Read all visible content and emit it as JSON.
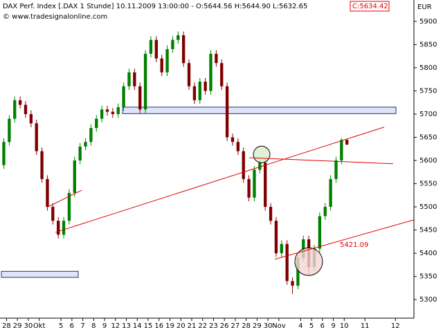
{
  "chart_data": {
    "type": "candlestick",
    "title": "DAX Perf. Index [.DAX  1 Stunde] 10.11.2009 13:00:00 - O:5644.56 H:5644.90 L:5632.65",
    "last_close_label": "C:5634.42",
    "copyright": "© www.tradesignalonline.com",
    "y_unit": "EUR",
    "up_color": "#008000",
    "down_color": "#800000",
    "line_color": "#e00000",
    "xlim": [
      -0.6,
      37.4
    ],
    "ylim": [
      5260,
      5946
    ],
    "yticks": [
      5300,
      5350,
      5400,
      5450,
      5500,
      5550,
      5600,
      5650,
      5700,
      5750,
      5800,
      5850,
      5900
    ],
    "xticks": [
      {
        "value": 0,
        "label": "28"
      },
      {
        "value": 1,
        "label": "29"
      },
      {
        "value": 2,
        "label": "30"
      },
      {
        "value": 3,
        "label": "Okt"
      },
      {
        "value": 5,
        "label": "5"
      },
      {
        "value": 6,
        "label": "6"
      },
      {
        "value": 7,
        "label": "7"
      },
      {
        "value": 8,
        "label": "8"
      },
      {
        "value": 9,
        "label": "9"
      },
      {
        "value": 10,
        "label": "12"
      },
      {
        "value": 11,
        "label": "13"
      },
      {
        "value": 12,
        "label": "14"
      },
      {
        "value": 13,
        "label": "15"
      },
      {
        "value": 14,
        "label": "16"
      },
      {
        "value": 15,
        "label": "19"
      },
      {
        "value": 16,
        "label": "20"
      },
      {
        "value": 17,
        "label": "21"
      },
      {
        "value": 18,
        "label": "22"
      },
      {
        "value": 19,
        "label": "23"
      },
      {
        "value": 20,
        "label": "26"
      },
      {
        "value": 21,
        "label": "27"
      },
      {
        "value": 22,
        "label": "28"
      },
      {
        "value": 23,
        "label": "29"
      },
      {
        "value": 24,
        "label": "30"
      },
      {
        "value": 25,
        "label": "Nov"
      },
      {
        "value": 27,
        "label": "4"
      },
      {
        "value": 28,
        "label": "5"
      },
      {
        "value": 29,
        "label": "6"
      },
      {
        "value": 30,
        "label": "9"
      },
      {
        "value": 31,
        "label": "10"
      },
      {
        "value": 32.9,
        "label": "11"
      },
      {
        "value": 35.7,
        "label": "12"
      }
    ],
    "candles": [
      {
        "x": -0.25,
        "o": 5590,
        "h": 5648,
        "l": 5582,
        "c": 5640
      },
      {
        "x": 0.25,
        "o": 5640,
        "h": 5698,
        "l": 5632,
        "c": 5690
      },
      {
        "x": 0.75,
        "o": 5690,
        "h": 5738,
        "l": 5682,
        "c": 5730
      },
      {
        "x": 1.25,
        "o": 5730,
        "h": 5738,
        "l": 5712,
        "c": 5720
      },
      {
        "x": 1.75,
        "o": 5720,
        "h": 5728,
        "l": 5692,
        "c": 5700
      },
      {
        "x": 2.25,
        "o": 5700,
        "h": 5708,
        "l": 5672,
        "c": 5680
      },
      {
        "x": 2.75,
        "o": 5680,
        "h": 5688,
        "l": 5612,
        "c": 5620
      },
      {
        "x": 3.25,
        "o": 5620,
        "h": 5628,
        "l": 5552,
        "c": 5560
      },
      {
        "x": 3.75,
        "o": 5560,
        "h": 5568,
        "l": 5492,
        "c": 5500
      },
      {
        "x": 4.25,
        "o": 5500,
        "h": 5508,
        "l": 5462,
        "c": 5470
      },
      {
        "x": 4.75,
        "o": 5470,
        "h": 5478,
        "l": 5432,
        "c": 5440
      },
      {
        "x": 5.25,
        "o": 5440,
        "h": 5478,
        "l": 5432,
        "c": 5470
      },
      {
        "x": 5.75,
        "o": 5470,
        "h": 5538,
        "l": 5462,
        "c": 5530
      },
      {
        "x": 6.25,
        "o": 5530,
        "h": 5608,
        "l": 5522,
        "c": 5600
      },
      {
        "x": 6.75,
        "o": 5600,
        "h": 5638,
        "l": 5592,
        "c": 5630
      },
      {
        "x": 7.25,
        "o": 5630,
        "h": 5648,
        "l": 5622,
        "c": 5640
      },
      {
        "x": 7.75,
        "o": 5640,
        "h": 5678,
        "l": 5632,
        "c": 5670
      },
      {
        "x": 8.25,
        "o": 5670,
        "h": 5698,
        "l": 5662,
        "c": 5690
      },
      {
        "x": 8.75,
        "o": 5690,
        "h": 5718,
        "l": 5682,
        "c": 5710
      },
      {
        "x": 9.25,
        "o": 5710,
        "h": 5718,
        "l": 5697,
        "c": 5705
      },
      {
        "x": 9.75,
        "o": 5705,
        "h": 5713,
        "l": 5692,
        "c": 5700
      },
      {
        "x": 10.25,
        "o": 5700,
        "h": 5723,
        "l": 5692,
        "c": 5715
      },
      {
        "x": 10.75,
        "o": 5715,
        "h": 5768,
        "l": 5707,
        "c": 5760
      },
      {
        "x": 11.25,
        "o": 5760,
        "h": 5798,
        "l": 5752,
        "c": 5790
      },
      {
        "x": 11.75,
        "o": 5790,
        "h": 5798,
        "l": 5752,
        "c": 5760
      },
      {
        "x": 12.25,
        "o": 5760,
        "h": 5768,
        "l": 5702,
        "c": 5710
      },
      {
        "x": 12.75,
        "o": 5710,
        "h": 5838,
        "l": 5702,
        "c": 5830
      },
      {
        "x": 13.25,
        "o": 5830,
        "h": 5868,
        "l": 5822,
        "c": 5860
      },
      {
        "x": 13.75,
        "o": 5860,
        "h": 5868,
        "l": 5812,
        "c": 5820
      },
      {
        "x": 14.25,
        "o": 5820,
        "h": 5828,
        "l": 5782,
        "c": 5790
      },
      {
        "x": 14.75,
        "o": 5790,
        "h": 5848,
        "l": 5782,
        "c": 5840
      },
      {
        "x": 15.25,
        "o": 5840,
        "h": 5868,
        "l": 5832,
        "c": 5860
      },
      {
        "x": 15.75,
        "o": 5860,
        "h": 5878,
        "l": 5852,
        "c": 5870
      },
      {
        "x": 16.25,
        "o": 5870,
        "h": 5878,
        "l": 5802,
        "c": 5810
      },
      {
        "x": 16.75,
        "o": 5810,
        "h": 5818,
        "l": 5752,
        "c": 5760
      },
      {
        "x": 17.25,
        "o": 5760,
        "h": 5768,
        "l": 5722,
        "c": 5730
      },
      {
        "x": 17.75,
        "o": 5730,
        "h": 5778,
        "l": 5722,
        "c": 5770
      },
      {
        "x": 18.25,
        "o": 5770,
        "h": 5778,
        "l": 5742,
        "c": 5750
      },
      {
        "x": 18.75,
        "o": 5750,
        "h": 5838,
        "l": 5742,
        "c": 5830
      },
      {
        "x": 19.25,
        "o": 5830,
        "h": 5838,
        "l": 5802,
        "c": 5810
      },
      {
        "x": 19.75,
        "o": 5810,
        "h": 5818,
        "l": 5752,
        "c": 5760
      },
      {
        "x": 20.25,
        "o": 5760,
        "h": 5768,
        "l": 5642,
        "c": 5650
      },
      {
        "x": 20.75,
        "o": 5650,
        "h": 5658,
        "l": 5632,
        "c": 5640
      },
      {
        "x": 21.25,
        "o": 5640,
        "h": 5648,
        "l": 5612,
        "c": 5620
      },
      {
        "x": 21.75,
        "o": 5620,
        "h": 5628,
        "l": 5552,
        "c": 5560
      },
      {
        "x": 22.25,
        "o": 5560,
        "h": 5568,
        "l": 5512,
        "c": 5520
      },
      {
        "x": 22.75,
        "o": 5520,
        "h": 5588,
        "l": 5512,
        "c": 5580
      },
      {
        "x": 23.25,
        "o": 5580,
        "h": 5603,
        "l": 5572,
        "c": 5595
      },
      {
        "x": 23.75,
        "o": 5595,
        "h": 5603,
        "l": 5492,
        "c": 5500
      },
      {
        "x": 24.25,
        "o": 5500,
        "h": 5508,
        "l": 5462,
        "c": 5470
      },
      {
        "x": 24.75,
        "o": 5470,
        "h": 5478,
        "l": 5392,
        "c": 5400
      },
      {
        "x": 25.25,
        "o": 5400,
        "h": 5428,
        "l": 5392,
        "c": 5420
      },
      {
        "x": 25.75,
        "o": 5420,
        "h": 5428,
        "l": 5332,
        "c": 5340
      },
      {
        "x": 26.25,
        "o": 5340,
        "h": 5348,
        "l": 5312,
        "c": 5330
      },
      {
        "x": 26.75,
        "o": 5330,
        "h": 5398,
        "l": 5322,
        "c": 5390
      },
      {
        "x": 27.25,
        "o": 5390,
        "h": 5438,
        "l": 5382,
        "c": 5430
      },
      {
        "x": 27.75,
        "o": 5430,
        "h": 5438,
        "l": 5352,
        "c": 5370
      },
      {
        "x": 28.25,
        "o": 5370,
        "h": 5418,
        "l": 5362,
        "c": 5410
      },
      {
        "x": 28.75,
        "o": 5410,
        "h": 5488,
        "l": 5402,
        "c": 5480
      },
      {
        "x": 29.25,
        "o": 5480,
        "h": 5508,
        "l": 5472,
        "c": 5500
      },
      {
        "x": 29.75,
        "o": 5500,
        "h": 5568,
        "l": 5492,
        "c": 5560
      },
      {
        "x": 30.25,
        "o": 5560,
        "h": 5608,
        "l": 5552,
        "c": 5600
      },
      {
        "x": 30.75,
        "o": 5600,
        "h": 5648,
        "l": 5592,
        "c": 5644.56
      },
      {
        "x": 31.25,
        "o": 5644.56,
        "h": 5644.9,
        "l": 5632.65,
        "c": 5634.42
      }
    ],
    "trend_lines": [
      {
        "x": [
          4.48,
          34.67
        ],
        "y": [
          5445,
          5672
        ]
      },
      {
        "x": [
          3.72,
          6.9
        ],
        "y": [
          5499,
          5536
        ]
      },
      {
        "x": [
          22.28,
          35.49
        ],
        "y": [
          5606,
          5593
        ]
      },
      {
        "x": [
          24.63,
          37.4
        ],
        "y": [
          5387,
          5472
        ],
        "label": "5421.09"
      }
    ],
    "zones": [
      {
        "x": [
          10.65,
          35.75
        ],
        "y": [
          5715,
          5701
        ]
      },
      {
        "x": [
          -0.47,
          6.58
        ],
        "y": [
          5361,
          5348
        ]
      }
    ],
    "circles": [
      {
        "x": 23.42,
        "y": 5613,
        "fill": "#d8ecd0"
      },
      {
        "x": 27.74,
        "y": 5382,
        "fill": "#f6d4d4"
      }
    ]
  }
}
